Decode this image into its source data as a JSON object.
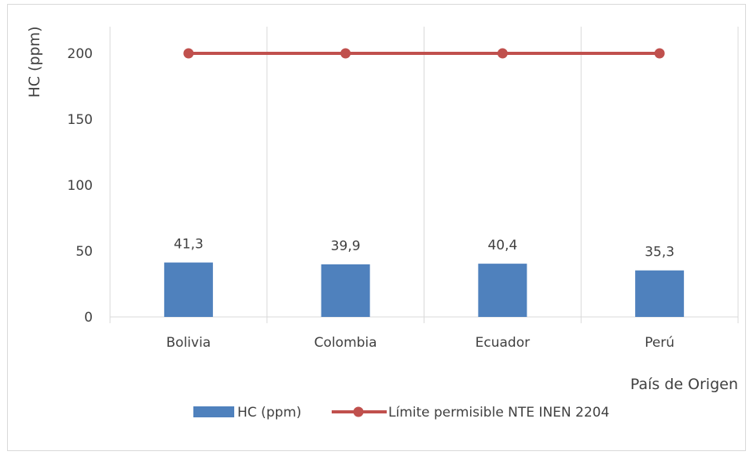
{
  "chart_data": {
    "type": "bar",
    "categories": [
      "Bolivia",
      "Colombia",
      "Ecuador",
      "Perú"
    ],
    "series": [
      {
        "name": "HC (ppm)",
        "kind": "bar",
        "color": "#4f81bd",
        "values": [
          41.3,
          39.9,
          40.4,
          35.3
        ]
      },
      {
        "name": "Límite permisible NTE INEN 2204",
        "kind": "line",
        "color": "#c0504d",
        "values": [
          200,
          200,
          200,
          200
        ]
      }
    ],
    "data_labels": [
      "41,3",
      "39,9",
      "40,4",
      "35,3"
    ],
    "xlabel": "País de Origen",
    "ylabel": "HC (ppm)",
    "ylim": [
      0,
      200
    ],
    "yticks": [
      0,
      50,
      100,
      150,
      200
    ],
    "grid": "vertical",
    "legend_position": "bottom"
  }
}
